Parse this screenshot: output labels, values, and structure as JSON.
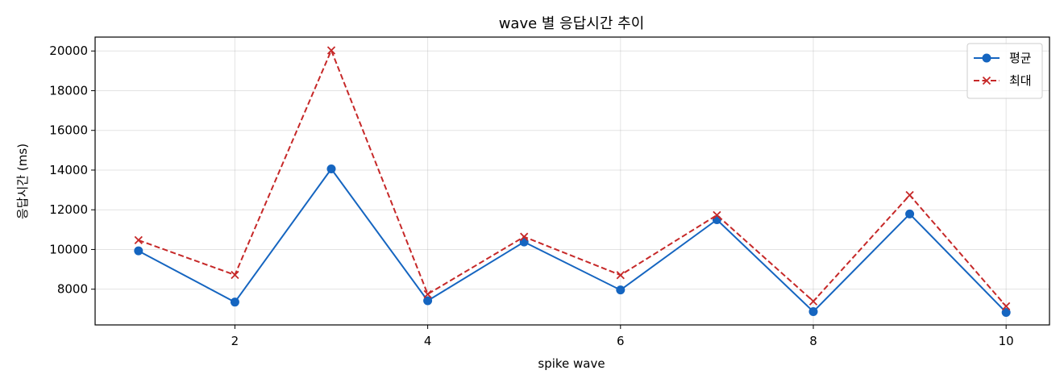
{
  "chart_data": {
    "type": "line",
    "title": "wave 별 응답시간 추이",
    "xlabel": "spike wave",
    "ylabel": "응답시간 (ms)",
    "x": [
      1,
      2,
      3,
      4,
      5,
      6,
      7,
      8,
      9,
      10
    ],
    "xlim": [
      0.55,
      10.45
    ],
    "ylim": [
      6200,
      20700
    ],
    "xticks": [
      2,
      4,
      6,
      8,
      10
    ],
    "yticks": [
      8000,
      10000,
      12000,
      14000,
      16000,
      18000,
      20000
    ],
    "grid": true,
    "legend_position": "top-right",
    "series": [
      {
        "name": "평균",
        "color": "#1565c0",
        "line_style": "solid",
        "marker": "circle",
        "values": [
          9930,
          7350,
          14060,
          7420,
          10380,
          7960,
          11500,
          6870,
          11790,
          6830
        ]
      },
      {
        "name": "최대",
        "color": "#c62828",
        "line_style": "dashed",
        "marker": "x",
        "values": [
          10470,
          8720,
          20030,
          7750,
          10640,
          8710,
          11730,
          7390,
          12740,
          7140
        ]
      }
    ]
  }
}
